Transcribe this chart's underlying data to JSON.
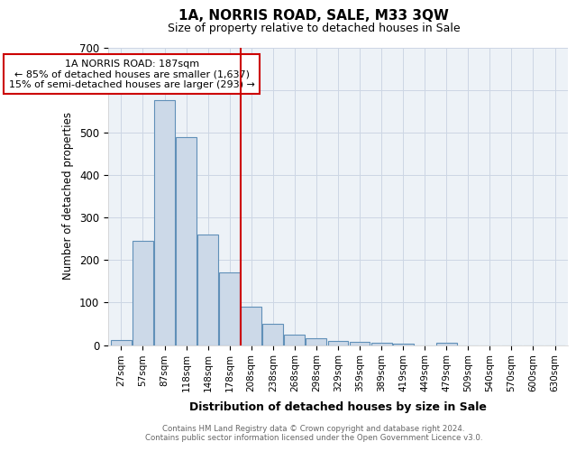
{
  "title": "1A, NORRIS ROAD, SALE, M33 3QW",
  "subtitle": "Size of property relative to detached houses in Sale",
  "xlabel": "Distribution of detached houses by size in Sale",
  "ylabel": "Number of detached properties",
  "footnote1": "Contains HM Land Registry data © Crown copyright and database right 2024.",
  "footnote2": "Contains public sector information licensed under the Open Government Licence v3.0.",
  "bar_labels": [
    "27sqm",
    "57sqm",
    "87sqm",
    "118sqm",
    "148sqm",
    "178sqm",
    "208sqm",
    "238sqm",
    "268sqm",
    "298sqm",
    "329sqm",
    "359sqm",
    "389sqm",
    "419sqm",
    "449sqm",
    "479sqm",
    "509sqm",
    "540sqm",
    "570sqm",
    "600sqm",
    "630sqm"
  ],
  "bar_values": [
    12,
    245,
    575,
    490,
    260,
    170,
    90,
    50,
    25,
    15,
    10,
    8,
    5,
    4,
    0,
    6,
    0,
    0,
    0,
    0,
    0
  ],
  "bar_color": "#ccd9e8",
  "bar_edge_color": "#6090b8",
  "vline_x": 5.5,
  "vline_color": "#cc0000",
  "ylim": [
    0,
    700
  ],
  "yticks": [
    0,
    100,
    200,
    300,
    400,
    500,
    600,
    700
  ],
  "annotation_text": "1A NORRIS ROAD: 187sqm\n← 85% of detached houses are smaller (1,637)\n15% of semi-detached houses are larger (293) →",
  "annotation_box_color": "#ffffff",
  "annotation_box_edge": "#cc0000",
  "grid_color": "#ccd6e4",
  "background_color": "#edf2f7",
  "title_fontsize": 11,
  "subtitle_fontsize": 9
}
